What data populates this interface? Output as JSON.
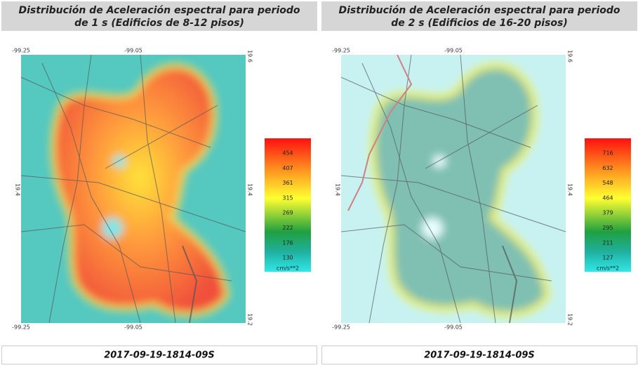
{
  "panels": [
    {
      "title_lines": [
        "Distribución de Aceleración espectral para periodo",
        "de 1 s (Edificios de 8-12 pisos)"
      ],
      "coords": {
        "top": [
          "-99.25",
          "-99.05"
        ],
        "bottom": [
          "-99.25",
          "-99.05"
        ],
        "left": [
          "19.4"
        ],
        "right": [
          "19.6",
          "19.4",
          "19.2"
        ]
      },
      "legend": {
        "values": [
          454,
          407,
          361,
          315,
          269,
          222,
          176,
          130
        ],
        "unit": "cm/s**2"
      },
      "footer": "2017-09-19-1814-09S"
    },
    {
      "title_lines": [
        "Distribución de Aceleración espectral para periodo",
        "de 2 s (Edificios de 16-20 pisos)"
      ],
      "coords": {
        "top": [
          "-99.25",
          "-99.05"
        ],
        "bottom": [
          "-99.25",
          "-99.05"
        ],
        "left": [
          "19.4"
        ],
        "right": [
          "19.6",
          "19.4",
          "19.2"
        ]
      },
      "legend": {
        "values": [
          716,
          632,
          548,
          464,
          379,
          295,
          211,
          127
        ],
        "unit": "cm/s**2"
      },
      "footer": "2017-09-19-1814-09S"
    }
  ]
}
